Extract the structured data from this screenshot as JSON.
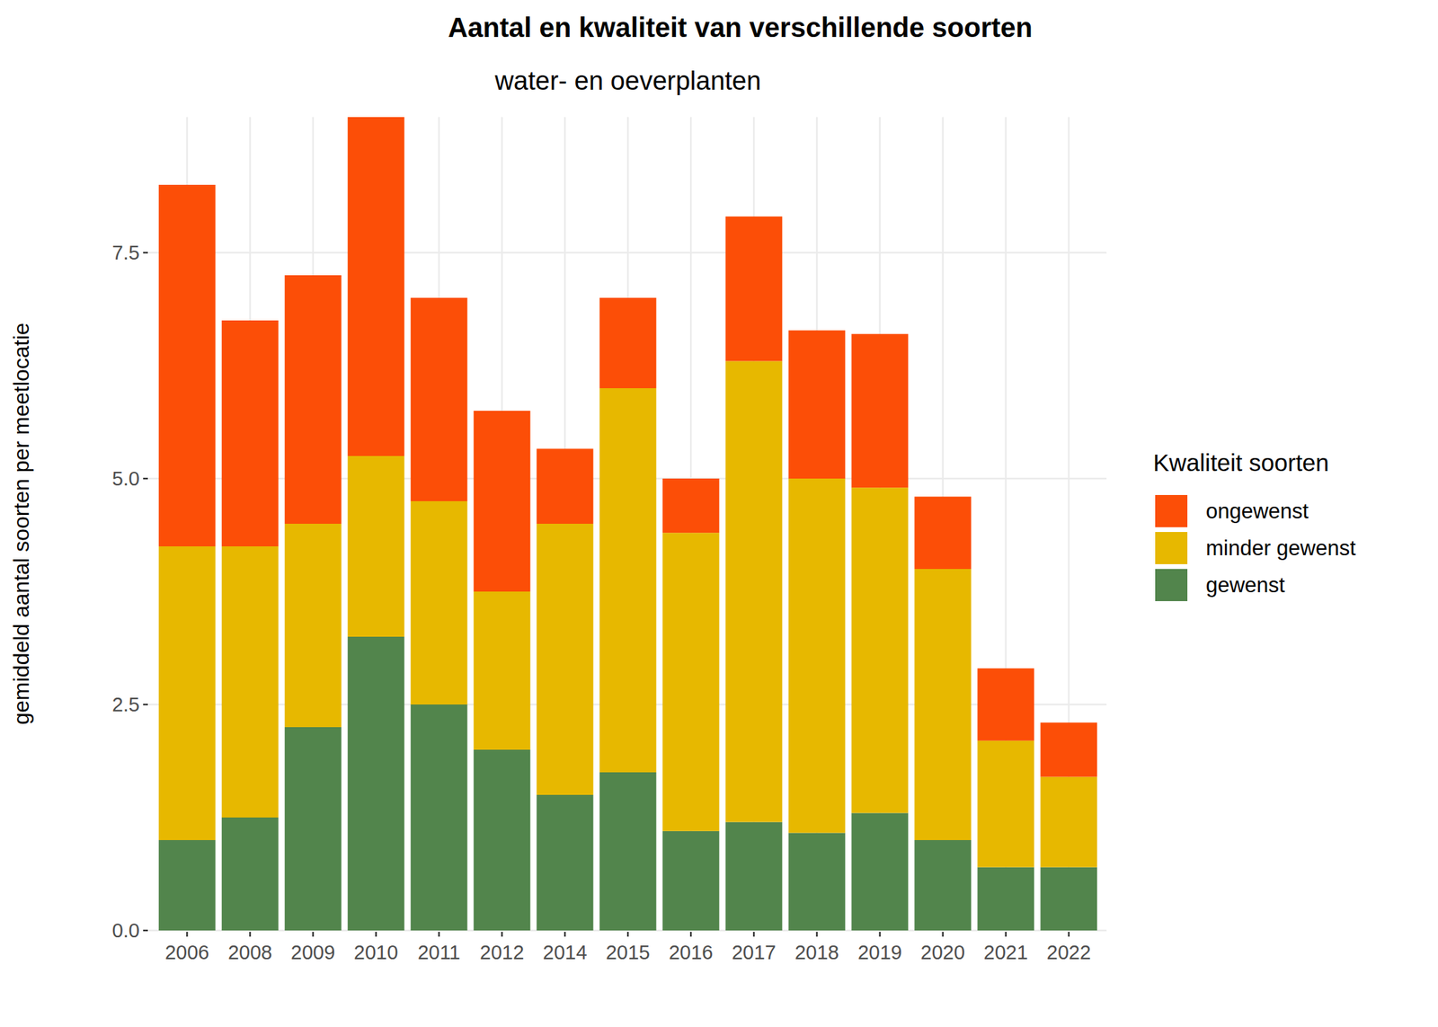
{
  "chart_data": {
    "type": "bar",
    "title": "Aantal en kwaliteit van verschillende soorten",
    "subtitle": "water- en oeverplanten",
    "y_label": "gemiddeld aantal soorten per meetlocatie",
    "legend_title": "Kwaliteit soorten",
    "stacked": true,
    "grid": true,
    "legend": "right",
    "categories": [
      "2006",
      "2008",
      "2009",
      "2010",
      "2011",
      "2012",
      "2014",
      "2015",
      "2016",
      "2017",
      "2018",
      "2019",
      "2020",
      "2021",
      "2022"
    ],
    "series": [
      {
        "name": "gewenst",
        "color": "#52854C",
        "values": [
          1.0,
          1.25,
          2.25,
          3.25,
          2.5,
          2.0,
          1.5,
          1.75,
          1.1,
          1.2,
          1.08,
          1.3,
          1.0,
          0.7,
          0.7
        ]
      },
      {
        "name": "minder gewenst",
        "color": "#E7B800",
        "values": [
          3.25,
          3.0,
          2.25,
          2.0,
          2.25,
          1.75,
          3.0,
          4.25,
          3.3,
          5.1,
          3.92,
          3.6,
          3.0,
          1.4,
          1.0
        ]
      },
      {
        "name": "ongewenst",
        "color": "#FC4E07",
        "values": [
          4.0,
          2.5,
          2.75,
          3.75,
          2.25,
          2.0,
          0.83,
          1.0,
          0.6,
          1.6,
          1.64,
          1.7,
          0.8,
          0.8,
          0.6
        ]
      }
    ],
    "ylim": [
      0,
      9
    ],
    "yticks": [
      {
        "value": 0,
        "label": "0.0"
      },
      {
        "value": 2.5,
        "label": "2.5"
      },
      {
        "value": 5,
        "label": "5.0"
      },
      {
        "value": 7.5,
        "label": "7.5"
      }
    ]
  }
}
